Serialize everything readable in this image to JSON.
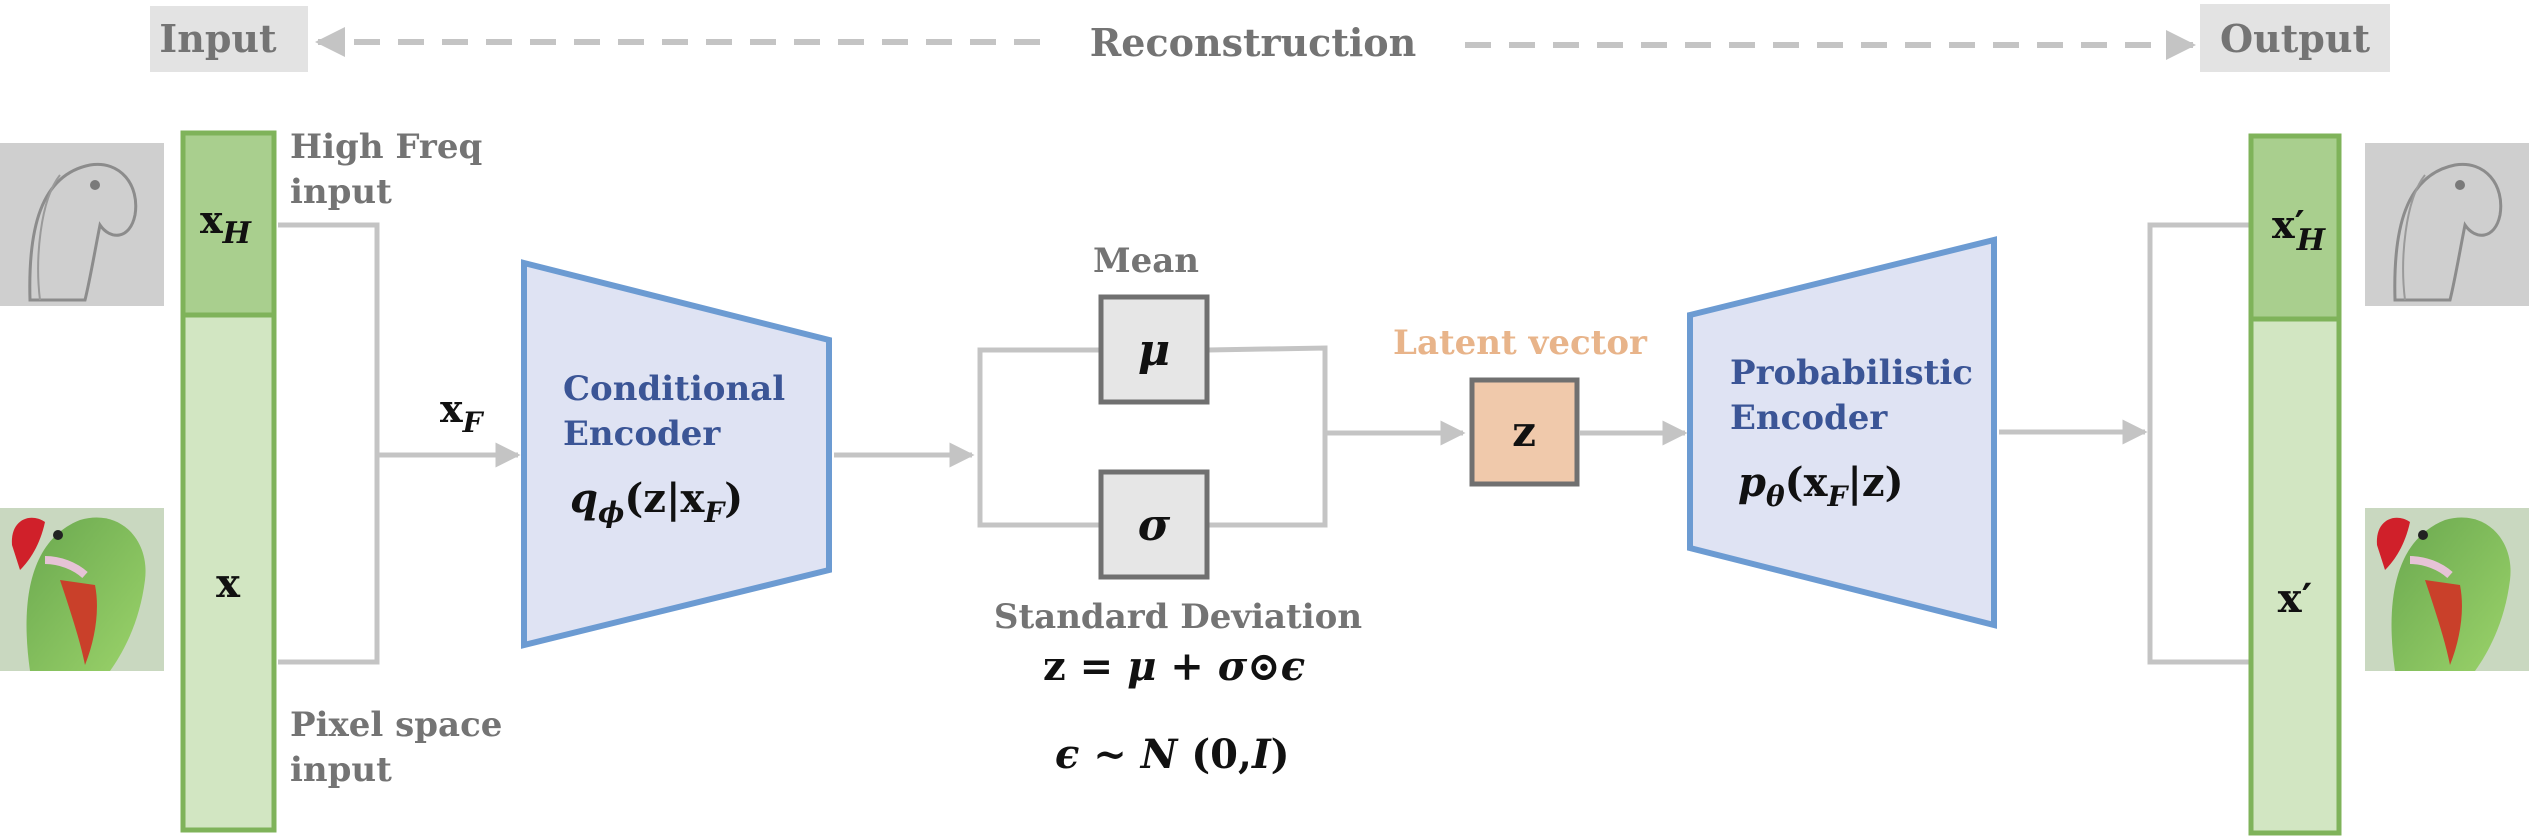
{
  "header": {
    "input": "Input",
    "reconstruction": "Reconstruction",
    "output": "Output"
  },
  "labels": {
    "high_freq_line1": "High Freq",
    "high_freq_line2": "input",
    "pixel_space_line1": "Pixel space",
    "pixel_space_line2": "input",
    "mean": "Mean",
    "standard_deviation": "Standard Deviation",
    "latent_vector": "Latent vector"
  },
  "symbols": {
    "xH_base": "x",
    "xH_sub": "H",
    "x": "x",
    "xF_base": "x",
    "xF_sub": "F",
    "mu": "μ",
    "sigma": "σ",
    "z": "z",
    "xH_prime_base": "x′",
    "xH_prime_sub": "H",
    "x_prime": "x′"
  },
  "encoders": {
    "conditional_line1": "Conditional",
    "conditional_line2": "Encoder",
    "conditional_formula_q": "q",
    "conditional_formula_phi": "ϕ",
    "conditional_formula_args": "(z|x",
    "conditional_formula_F": "F",
    "conditional_formula_close": ")",
    "probabilistic_line1": "Probabilistic",
    "probabilistic_line2": "Encoder",
    "probabilistic_formula_p": "p",
    "probabilistic_formula_theta": "θ",
    "probabilistic_formula_args": "(x",
    "probabilistic_formula_F": "F",
    "probabilistic_formula_close": "|z)"
  },
  "equations": {
    "reparam_lhs": "z = ",
    "reparam_mu": "μ",
    "reparam_plus": " + ",
    "reparam_sigma": "σ",
    "reparam_odot": "⊙",
    "reparam_eps": "ϵ",
    "noise_eps": "ϵ",
    "noise_sim": " ~ ",
    "noise_N": "N",
    "noise_args_open": " (",
    "noise_zero": "0",
    "noise_comma": ",",
    "noise_I": "I",
    "noise_close": ")"
  },
  "colors": {
    "green_dark": "#a9cf8e",
    "green_light": "#d2e6c2",
    "green_border": "#7fb35a",
    "encoder_fill": "#dfe3f3",
    "encoder_border": "#6c9bd2",
    "latent_fill": "#f0c9ab",
    "latent_label": "#e8b48a",
    "stat_box_fill": "#e6e6e6",
    "header_box_fill": "#e3e3e3",
    "wire": "#c4c4c4"
  }
}
